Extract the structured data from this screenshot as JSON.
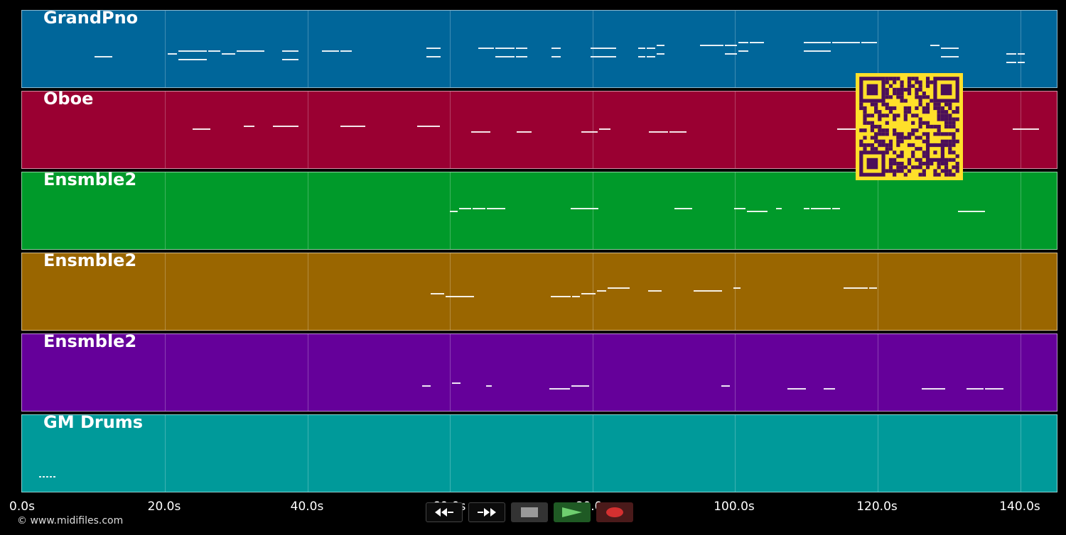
{
  "tracks": [
    {
      "name": "GrandPno",
      "color": "#00669a"
    },
    {
      "name": "Oboe",
      "color": "#9a0032"
    },
    {
      "name": "Ensmble2",
      "color": "#009a2a"
    },
    {
      "name": "Ensmble2",
      "color": "#9a6600"
    },
    {
      "name": "Ensmble2",
      "color": "#65009a"
    },
    {
      "name": "GM Drums",
      "color": "#009a9a"
    }
  ],
  "timeline": {
    "ticks": [
      "0.0s",
      "20.0s",
      "40.0s",
      "60.0s",
      "80.0s",
      "100.0s",
      "120.0s",
      "140.0s"
    ]
  },
  "transport": {
    "rewind_icon": "rewind-icon",
    "fast_forward_icon": "fast-forward-icon",
    "stop_icon": "stop-icon",
    "play_icon": "play-icon",
    "record_icon": "record-icon",
    "play_color": "#6fcf6f",
    "record_color": "#d43030"
  },
  "copyright": "© www.midifiles.com",
  "qr": {
    "color_fg": "#4b0f5a",
    "color_bg": "#ffe02a"
  }
}
